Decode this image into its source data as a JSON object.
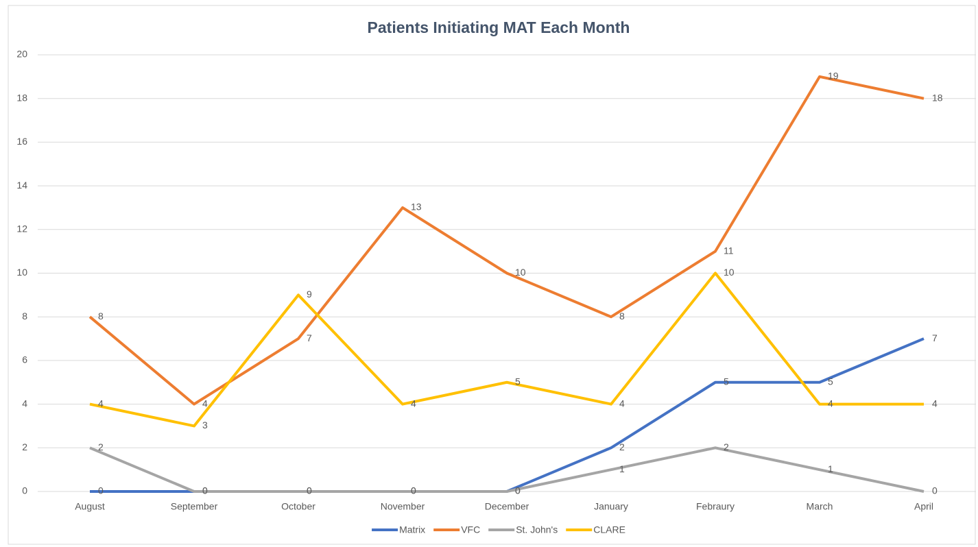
{
  "chart_data": {
    "type": "line",
    "title": "Patients Initiating MAT Each Month",
    "categories": [
      "August",
      "September",
      "October",
      "November",
      "December",
      "January",
      "Febraury",
      "March",
      "April"
    ],
    "series": [
      {
        "name": "Matrix",
        "color": "#4472c4",
        "values": [
          0,
          0,
          0,
          0,
          0,
          2,
          5,
          5,
          7
        ]
      },
      {
        "name": "VFC",
        "color": "#ed7d31",
        "values": [
          8,
          4,
          7,
          13,
          10,
          8,
          11,
          19,
          18
        ]
      },
      {
        "name": "St. John's",
        "color": "#a5a5a5",
        "values": [
          2,
          0,
          0,
          0,
          0,
          1,
          2,
          1,
          0
        ]
      },
      {
        "name": "CLARE",
        "color": "#ffc000",
        "values": [
          4,
          3,
          9,
          4,
          5,
          4,
          10,
          4,
          4
        ]
      }
    ],
    "ylim": [
      0,
      20
    ],
    "yticks": [
      0,
      2,
      4,
      6,
      8,
      10,
      12,
      14,
      16,
      18,
      20
    ],
    "grid": true,
    "legend": "bottom"
  }
}
